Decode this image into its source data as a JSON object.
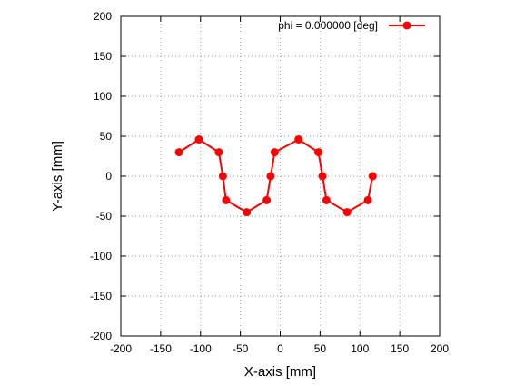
{
  "chart_data": {
    "type": "line",
    "xlabel": "X-axis [mm]",
    "ylabel": "Y-axis [mm]",
    "xlim": [
      -200,
      200
    ],
    "ylim": [
      -200,
      200
    ],
    "xticks": [
      -200,
      -150,
      -100,
      -50,
      0,
      50,
      100,
      150,
      200
    ],
    "yticks": [
      -200,
      -150,
      -100,
      -50,
      0,
      50,
      100,
      150,
      200
    ],
    "grid": true,
    "legend_position": "top-right",
    "series": [
      {
        "name": "phi = 0.000000 [deg]",
        "color": "#ff0000",
        "marker": "circle",
        "points": [
          [
            -127,
            30
          ],
          [
            -102,
            46
          ],
          [
            -77,
            30
          ],
          [
            -72,
            0
          ],
          [
            -68,
            -30
          ],
          [
            -42,
            -45
          ],
          [
            -17,
            -30
          ],
          [
            -12,
            0
          ],
          [
            -7,
            30
          ],
          [
            23,
            46
          ],
          [
            48,
            30
          ],
          [
            53,
            0
          ],
          [
            58,
            -30
          ],
          [
            84,
            -45
          ],
          [
            110,
            -30
          ],
          [
            116,
            0
          ]
        ]
      }
    ]
  }
}
